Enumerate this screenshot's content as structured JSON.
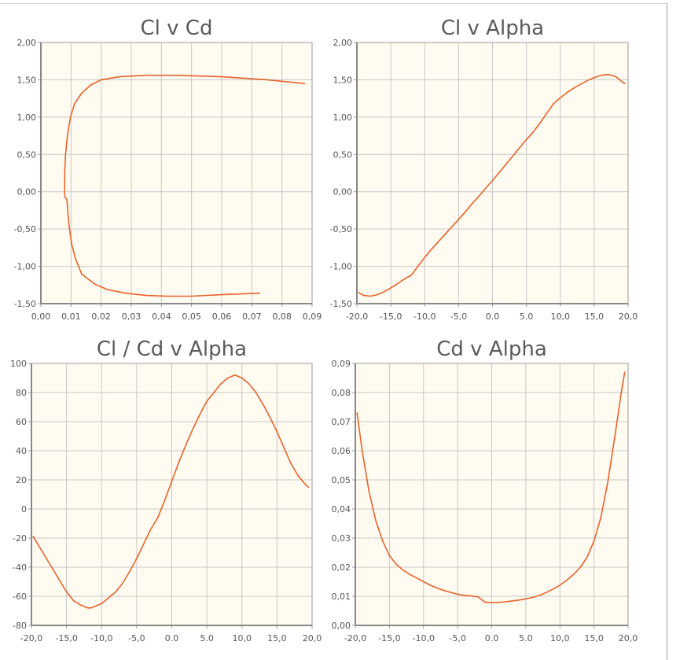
{
  "colors": {
    "plot_background": "#fffbf0",
    "grid": "#c8c8c8",
    "axis": "#9a9a9a",
    "series": "#e8632a",
    "title": "#5a5a5a",
    "tick_text": "#555555"
  },
  "chart_data": [
    {
      "type": "line",
      "title": "Cl v Cd",
      "xlabel": "",
      "ylabel": "",
      "grid": true,
      "xlim": [
        0,
        0.09
      ],
      "ylim": [
        -1.5,
        2.0
      ],
      "x_ticks": [
        "0,00",
        "0,01",
        "0,02",
        "0,03",
        "0,04",
        "0,05",
        "0,06",
        "0,07",
        "0,08",
        "0,09"
      ],
      "y_ticks": [
        "-1,50",
        "-1,00",
        "-0,50",
        "0,00",
        "0,50",
        "1,00",
        "1,50",
        "2,00"
      ],
      "series": [
        {
          "x": [
            0.0726,
            0.06,
            0.05,
            0.042,
            0.035,
            0.028,
            0.022,
            0.018,
            0.016,
            0.0135,
            0.0115,
            0.0102,
            0.0095,
            0.009,
            0.0088,
            0.0087,
            0.0085,
            0.008,
            0.0079,
            0.0079,
            0.0082,
            0.0088,
            0.0098,
            0.0112,
            0.0135,
            0.0165,
            0.02,
            0.026,
            0.035,
            0.045,
            0.06,
            0.075,
            0.0875
          ],
          "y": [
            -1.36,
            -1.38,
            -1.4,
            -1.4,
            -1.39,
            -1.36,
            -1.31,
            -1.24,
            -1.18,
            -1.1,
            -0.9,
            -0.7,
            -0.5,
            -0.3,
            -0.18,
            -0.12,
            -0.1,
            -0.07,
            0.0,
            0.25,
            0.5,
            0.75,
            1.0,
            1.18,
            1.32,
            1.43,
            1.5,
            1.54,
            1.56,
            1.56,
            1.54,
            1.5,
            1.45
          ]
        }
      ]
    },
    {
      "type": "line",
      "title": "Cl v Alpha",
      "xlabel": "",
      "ylabel": "",
      "grid": true,
      "xlim": [
        -20,
        20
      ],
      "ylim": [
        -1.5,
        2.0
      ],
      "x_ticks": [
        "-20,0",
        "-15,0",
        "-10,0",
        "-5,0",
        "0.0",
        "5.0",
        "10,0",
        "15,0",
        "20,0"
      ],
      "y_ticks": [
        "-1,50",
        "-1,00",
        "-0,50",
        "0,00",
        "0,50",
        "1,00",
        "1,50",
        "2,00"
      ],
      "series": [
        {
          "x": [
            -19.75,
            -19,
            -18,
            -17,
            -16,
            -15,
            -14,
            -13,
            -12,
            -11,
            -10,
            -9,
            -8,
            -7,
            -6,
            -5,
            -4,
            -3,
            -2,
            -1,
            0,
            1,
            2,
            3,
            4,
            5,
            6,
            7,
            8,
            9,
            10,
            11,
            12,
            13,
            14,
            15,
            16,
            17,
            17.5,
            18,
            18.5,
            19,
            19.5
          ],
          "y": [
            -1.35,
            -1.39,
            -1.4,
            -1.38,
            -1.34,
            -1.29,
            -1.23,
            -1.17,
            -1.12,
            -1.0,
            -0.88,
            -0.77,
            -0.67,
            -0.57,
            -0.47,
            -0.37,
            -0.27,
            -0.16,
            -0.06,
            0.05,
            0.15,
            0.26,
            0.37,
            0.48,
            0.59,
            0.7,
            0.8,
            0.92,
            1.05,
            1.18,
            1.26,
            1.33,
            1.39,
            1.44,
            1.49,
            1.53,
            1.56,
            1.57,
            1.56,
            1.55,
            1.52,
            1.48,
            1.45
          ]
        }
      ]
    },
    {
      "type": "line",
      "title": "Cl / Cd v Alpha",
      "xlabel": "",
      "ylabel": "",
      "grid": true,
      "xlim": [
        -20,
        20
      ],
      "ylim": [
        -80,
        100
      ],
      "x_ticks": [
        "-20,0",
        "-15,0",
        "-10,0",
        "-5,0",
        "0.0",
        "5.0",
        "10,0",
        "15,0",
        "20,0"
      ],
      "y_ticks": [
        "-80",
        "-60",
        "-40",
        "-20",
        "0",
        "20",
        "40",
        "60",
        "80",
        "100"
      ],
      "series": [
        {
          "x": [
            -19.75,
            -18,
            -16,
            -15,
            -14,
            -13,
            -12,
            -11.5,
            -11,
            -10,
            -9,
            -8,
            -7,
            -6,
            -5,
            -4,
            -3,
            -2,
            -1,
            0,
            1,
            2,
            3,
            4,
            5,
            6,
            7,
            8,
            9,
            10,
            11,
            12,
            13,
            14,
            15,
            16,
            17,
            18,
            19,
            19.5
          ],
          "y": [
            -19,
            -33,
            -49,
            -57,
            -63,
            -66,
            -68,
            -68,
            -67,
            -65,
            -61,
            -57,
            -51,
            -43,
            -34,
            -24,
            -14,
            -6,
            6,
            19,
            32,
            44,
            55,
            65,
            74,
            80,
            86,
            90,
            92,
            90,
            86,
            80,
            72,
            63,
            53,
            42,
            31,
            23,
            17,
            15
          ]
        }
      ]
    },
    {
      "type": "line",
      "title": "Cd v Alpha",
      "xlabel": "",
      "ylabel": "",
      "grid": true,
      "xlim": [
        -20,
        20
      ],
      "ylim": [
        0,
        0.09
      ],
      "x_ticks": [
        "-20,0",
        "-15,0",
        "-10,0",
        "-5,0",
        "0.0",
        "5.0",
        "10,0",
        "15,0",
        "20,0"
      ],
      "y_ticks": [
        "0,00",
        "0,01",
        "0,02",
        "0,03",
        "0,04",
        "0,05",
        "0,06",
        "0,07",
        "0,08",
        "0,09"
      ],
      "series": [
        {
          "x": [
            -19.75,
            -19,
            -18,
            -17,
            -16,
            -15,
            -14,
            -13,
            -12,
            -11,
            -10,
            -9,
            -8,
            -7,
            -6,
            -5,
            -4,
            -3,
            -2,
            -1,
            0,
            1,
            2,
            3,
            4,
            5,
            6,
            7,
            8,
            9,
            10,
            11,
            12,
            13,
            14,
            15,
            16,
            17,
            18,
            18.5,
            19,
            19.5
          ],
          "y": [
            0.073,
            0.06,
            0.046,
            0.036,
            0.029,
            0.024,
            0.021,
            0.019,
            0.0175,
            0.0163,
            0.015,
            0.0138,
            0.0128,
            0.012,
            0.0113,
            0.0107,
            0.0103,
            0.0101,
            0.0098,
            0.008,
            0.0078,
            0.0079,
            0.0081,
            0.0084,
            0.0087,
            0.0091,
            0.0096,
            0.0103,
            0.0113,
            0.0125,
            0.0138,
            0.0155,
            0.0175,
            0.02,
            0.0235,
            0.029,
            0.037,
            0.049,
            0.064,
            0.072,
            0.08,
            0.087
          ]
        }
      ]
    }
  ]
}
